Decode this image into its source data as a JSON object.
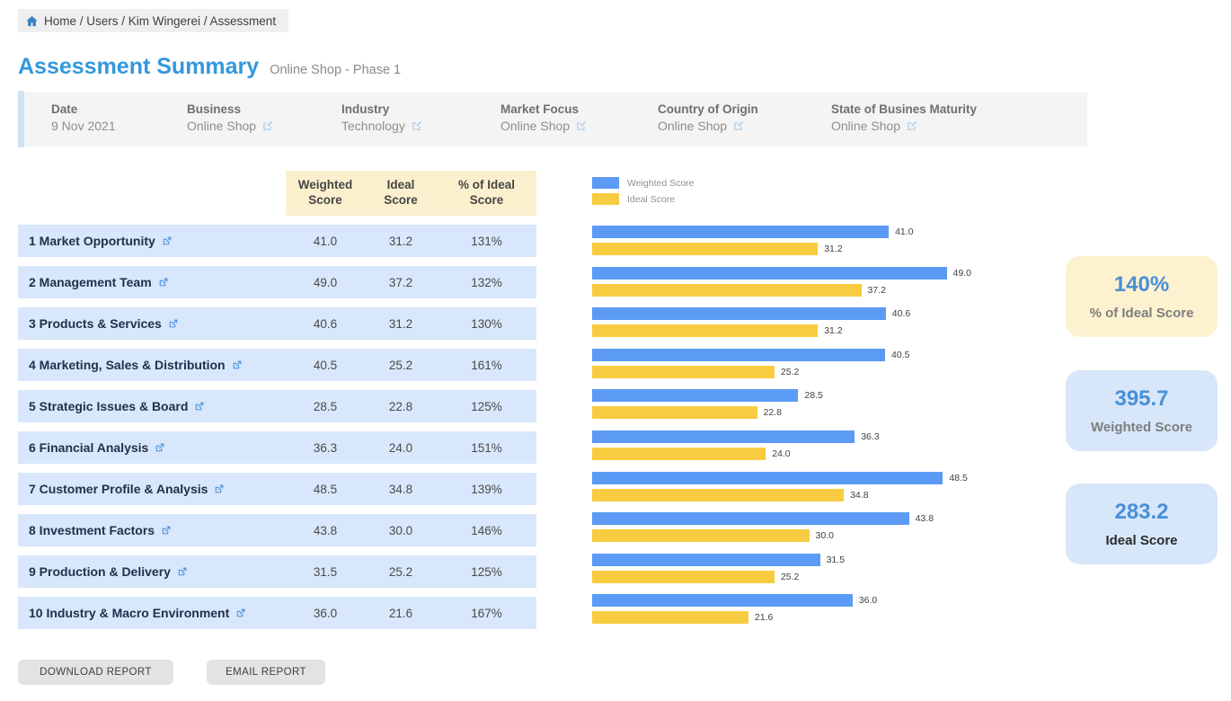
{
  "breadcrumb": {
    "text": "Home / Users / Kim Wingerei / Assessment"
  },
  "header": {
    "title": "Assessment Summary",
    "subtitle": "Online Shop - Phase 1"
  },
  "info": {
    "fields": [
      {
        "label": "Date",
        "value": "9 Nov 2021",
        "editable": false
      },
      {
        "label": "Business",
        "value": "Online Shop",
        "editable": true
      },
      {
        "label": "Industry",
        "value": "Technology",
        "editable": true
      },
      {
        "label": "Market Focus",
        "value": "Online Shop",
        "editable": true
      },
      {
        "label": "Country of Origin",
        "value": "Online Shop",
        "editable": true
      },
      {
        "label": "State of Busines Maturity",
        "value": "Online Shop",
        "editable": true
      }
    ]
  },
  "table": {
    "headers": [
      "Weighted Score",
      "Ideal Score",
      "% of Ideal Score"
    ],
    "rows": [
      {
        "label": "1 Market Opportunity",
        "weighted": "41.0",
        "ideal": "31.2",
        "pct": "131%"
      },
      {
        "label": "2 Management Team",
        "weighted": "49.0",
        "ideal": "37.2",
        "pct": "132%"
      },
      {
        "label": "3 Products & Services",
        "weighted": "40.6",
        "ideal": "31.2",
        "pct": "130%"
      },
      {
        "label": "4 Marketing, Sales & Distribution",
        "weighted": "40.5",
        "ideal": "25.2",
        "pct": "161%"
      },
      {
        "label": "5 Strategic Issues & Board",
        "weighted": "28.5",
        "ideal": "22.8",
        "pct": "125%"
      },
      {
        "label": "6 Financial Analysis",
        "weighted": "36.3",
        "ideal": "24.0",
        "pct": "151%"
      },
      {
        "label": "7 Customer Profile & Analysis",
        "weighted": "48.5",
        "ideal": "34.8",
        "pct": "139%"
      },
      {
        "label": "8 Investment Factors",
        "weighted": "43.8",
        "ideal": "30.0",
        "pct": "146%"
      },
      {
        "label": "9 Production & Delivery",
        "weighted": "31.5",
        "ideal": "25.2",
        "pct": "125%"
      },
      {
        "label": "10 Industry & Macro Environment",
        "weighted": "36.0",
        "ideal": "21.6",
        "pct": "167%"
      }
    ]
  },
  "chart_data": {
    "type": "bar",
    "orientation": "horizontal",
    "title": "",
    "categories": [
      "1 Market Opportunity",
      "2 Management Team",
      "3 Products & Services",
      "4 Marketing, Sales & Distribution",
      "5 Strategic Issues & Board",
      "6 Financial Analysis",
      "7 Customer Profile & Analysis",
      "8 Investment Factors",
      "9 Production & Delivery",
      "10 Industry & Macro Environment"
    ],
    "series": [
      {
        "name": "Weighted Score",
        "color": "#5b9bf5",
        "values": [
          41.0,
          49.0,
          40.6,
          40.5,
          28.5,
          36.3,
          48.5,
          43.8,
          31.5,
          36.0
        ]
      },
      {
        "name": "Ideal Score",
        "color": "#f7cc40",
        "values": [
          31.2,
          37.2,
          31.2,
          25.2,
          22.8,
          24.0,
          34.8,
          30.0,
          25.2,
          21.6
        ]
      }
    ],
    "xlim": [
      0,
      49
    ],
    "value_labels": true,
    "legend_position": "top-left",
    "grid": false
  },
  "summary_cards": [
    {
      "value": "140%",
      "label": "% of Ideal Score",
      "bg": "#fdf2d0",
      "label_color": "#7d7d7d"
    },
    {
      "value": "395.7",
      "label": "Weighted Score",
      "bg": "#d7e7f9",
      "label_color": "#7d7d7d"
    },
    {
      "value": "283.2",
      "label": "Ideal Score",
      "bg": "#d7e7f9",
      "label_color": "#2b2b2b"
    }
  ],
  "actions": {
    "download": "DOWNLOAD REPORT",
    "email": "EMAIL REPORT"
  },
  "colors": {
    "title_blue": "#3398dc",
    "row_bg": "#d8e7fb",
    "header_bg": "#fbf0cd",
    "bar_blue": "#5b9bf5",
    "bar_yellow": "#f7cc40",
    "accent_bar": "#cfe3f4"
  }
}
